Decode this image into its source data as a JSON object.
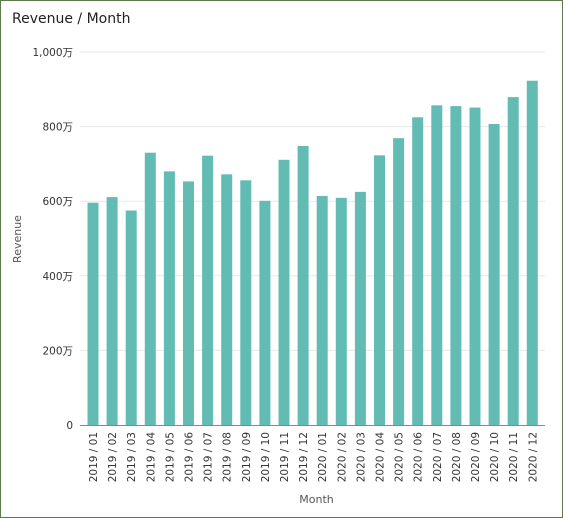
{
  "chart_data": {
    "type": "bar",
    "title": "Revenue / Month",
    "xlabel": "Month",
    "ylabel": "Revenue",
    "ylim": [
      0,
      1000
    ],
    "yticks": [
      {
        "value": 0,
        "label": "0"
      },
      {
        "value": 200,
        "label": "200万"
      },
      {
        "value": 400,
        "label": "400万"
      },
      {
        "value": 600,
        "label": "600万"
      },
      {
        "value": 800,
        "label": "800万"
      },
      {
        "value": 1000,
        "label": "1,000万"
      }
    ],
    "grid": true,
    "bar_color": "#62bcb4",
    "categories": [
      "2019 / 01",
      "2019 / 02",
      "2019 / 03",
      "2019 / 04",
      "2019 / 05",
      "2019 / 06",
      "2019 / 07",
      "2019 / 08",
      "2019 / 09",
      "2019 / 10",
      "2019 / 11",
      "2019 / 12",
      "2020 / 01",
      "2020 / 02",
      "2020 / 03",
      "2020 / 04",
      "2020 / 05",
      "2020 / 06",
      "2020 / 07",
      "2020 / 08",
      "2020 / 09",
      "2020 / 10",
      "2020 / 11",
      "2020 / 12"
    ],
    "values": [
      596,
      611,
      575,
      730,
      680,
      653,
      722,
      672,
      656,
      601,
      711,
      748,
      614,
      609,
      625,
      723,
      769,
      825,
      857,
      855,
      851,
      807,
      879,
      923
    ]
  }
}
